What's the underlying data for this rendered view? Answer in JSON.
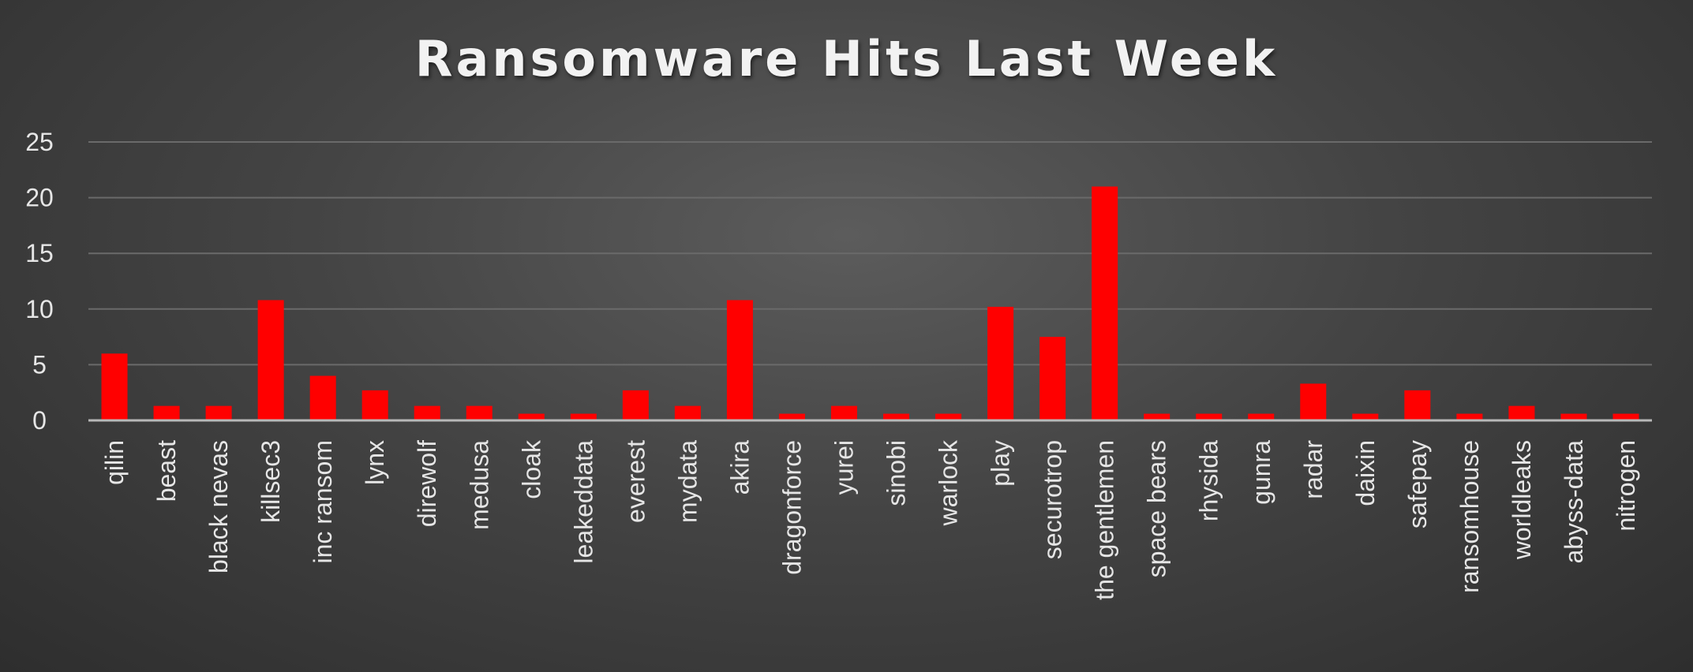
{
  "colors": {
    "bar": "#ff0000",
    "grid": "#6a6a6a",
    "axis": "#b8b8b8",
    "text": "#e6e6e6"
  },
  "chart_data": {
    "type": "bar",
    "title": "Ransomware Hits Last Week",
    "xlabel": "",
    "ylabel": "",
    "ylim": [
      0,
      25
    ],
    "yticks": [
      0,
      5,
      10,
      15,
      20,
      25
    ],
    "grid": true,
    "legend": "none",
    "categories": [
      "qilin",
      "beast",
      "black nevas",
      "killsec3",
      "inc ransom",
      "lynx",
      "direwolf",
      "medusa",
      "cloak",
      "leakeddata",
      "everest",
      "mydata",
      "akira",
      "dragonforce",
      "yurei",
      "sinobi",
      "warlock",
      "play",
      "securotrop",
      "the gentlemen",
      "space bears",
      "rhysida",
      "gunra",
      "radar",
      "daixin",
      "safepay",
      "ransomhouse",
      "worldleaks",
      "abyss-data",
      "nitrogen"
    ],
    "values": [
      6,
      1.3,
      1.3,
      10.8,
      4,
      2.7,
      1.3,
      1.3,
      0.6,
      0.6,
      2.7,
      1.3,
      10.8,
      0.6,
      1.3,
      0.6,
      0.6,
      10.2,
      7.5,
      21,
      0.6,
      0.6,
      0.6,
      3.3,
      0.6,
      2.7,
      0.6,
      1.3,
      0.6,
      0.6
    ]
  }
}
